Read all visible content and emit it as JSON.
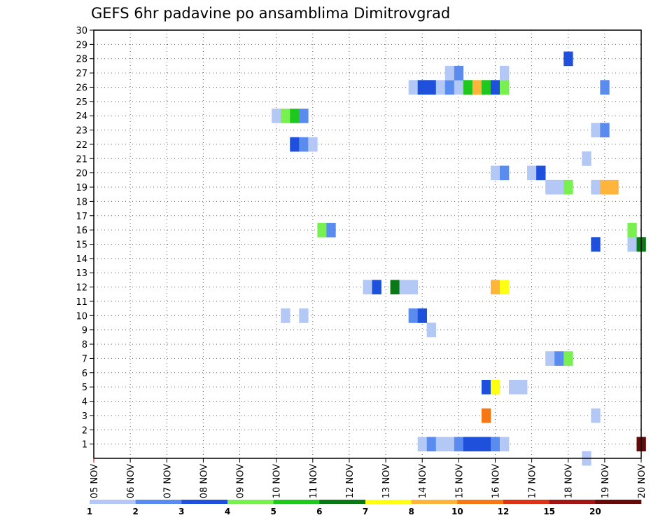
{
  "chart_data": {
    "type": "heatmap",
    "title": "GEFS 6hr padavine po ansamblima Dimitrovgrad",
    "x_tick_labels": [
      "05 NOV",
      "06 NOV",
      "07 NOV",
      "08 NOV",
      "09 NOV",
      "10 NOV",
      "11 NOV",
      "12 NOV",
      "13 NOV",
      "14 NOV",
      "15 NOV",
      "16 NOV",
      "17 NOV",
      "18 NOV",
      "19 NOV",
      "20 NOV"
    ],
    "x_unit": "6-hour step from 05 NOV 00Z",
    "xlim": [
      0,
      60
    ],
    "y_tick_labels": [
      "1",
      "2",
      "3",
      "4",
      "5",
      "6",
      "7",
      "8",
      "9",
      "10",
      "11",
      "12",
      "13",
      "14",
      "15",
      "16",
      "17",
      "18",
      "19",
      "20",
      "21",
      "22",
      "23",
      "24",
      "25",
      "26",
      "27",
      "28",
      "29",
      "30"
    ],
    "ylim": [
      0,
      30
    ],
    "grid": true,
    "color_scale": {
      "levels": [
        "1",
        "2",
        "3",
        "4",
        "5",
        "6",
        "7",
        "8",
        "10",
        "12",
        "15",
        "20"
      ],
      "colors": [
        "#b4c8f5",
        "#5a8cf0",
        "#1e50dc",
        "#78f050",
        "#1ec81e",
        "#0a7814",
        "#ffff14",
        "#ffb43c",
        "#f57814",
        "#dc3214",
        "#a01414",
        "#640a0a"
      ]
    },
    "cells": [
      {
        "x": 36,
        "y": 1,
        "c": 1
      },
      {
        "x": 37,
        "y": 1,
        "c": 2
      },
      {
        "x": 38,
        "y": 1,
        "c": 1
      },
      {
        "x": 39,
        "y": 1,
        "c": 1
      },
      {
        "x": 40,
        "y": 1,
        "c": 2
      },
      {
        "x": 41,
        "y": 1,
        "c": 3
      },
      {
        "x": 42,
        "y": 1,
        "c": 3
      },
      {
        "x": 43,
        "y": 1,
        "c": 3
      },
      {
        "x": 44,
        "y": 1,
        "c": 2
      },
      {
        "x": 45,
        "y": 1,
        "c": 1
      },
      {
        "x": 60,
        "y": 1,
        "c": 12
      },
      {
        "x": 54,
        "y": 0,
        "c": 1
      },
      {
        "x": 43,
        "y": 3,
        "c": 9
      },
      {
        "x": 55,
        "y": 3,
        "c": 1
      },
      {
        "x": 43,
        "y": 5,
        "c": 3
      },
      {
        "x": 44,
        "y": 5,
        "c": 7
      },
      {
        "x": 46,
        "y": 5,
        "c": 1
      },
      {
        "x": 47,
        "y": 5,
        "c": 1
      },
      {
        "x": 50,
        "y": 7,
        "c": 1
      },
      {
        "x": 51,
        "y": 7,
        "c": 2
      },
      {
        "x": 52,
        "y": 7,
        "c": 4
      },
      {
        "x": 37,
        "y": 9,
        "c": 1
      },
      {
        "x": 21,
        "y": 10,
        "c": 1
      },
      {
        "x": 23,
        "y": 10,
        "c": 1
      },
      {
        "x": 35,
        "y": 10,
        "c": 2
      },
      {
        "x": 36,
        "y": 10,
        "c": 3
      },
      {
        "x": 30,
        "y": 12,
        "c": 1
      },
      {
        "x": 31,
        "y": 12,
        "c": 3
      },
      {
        "x": 33,
        "y": 12,
        "c": 6
      },
      {
        "x": 34,
        "y": 12,
        "c": 1
      },
      {
        "x": 35,
        "y": 12,
        "c": 1
      },
      {
        "x": 44,
        "y": 12,
        "c": 8
      },
      {
        "x": 45,
        "y": 12,
        "c": 7
      },
      {
        "x": 55,
        "y": 15,
        "c": 3
      },
      {
        "x": 59,
        "y": 15,
        "c": 1
      },
      {
        "x": 60,
        "y": 15,
        "c": 6
      },
      {
        "x": 25,
        "y": 16,
        "c": 4
      },
      {
        "x": 26,
        "y": 16,
        "c": 2
      },
      {
        "x": 59,
        "y": 16,
        "c": 4
      },
      {
        "x": 50,
        "y": 19,
        "c": 1
      },
      {
        "x": 51,
        "y": 19,
        "c": 1
      },
      {
        "x": 52,
        "y": 19,
        "c": 4
      },
      {
        "x": 55,
        "y": 19,
        "c": 1
      },
      {
        "x": 56,
        "y": 19,
        "c": 8
      },
      {
        "x": 57,
        "y": 19,
        "c": 8
      },
      {
        "x": 44,
        "y": 20,
        "c": 1
      },
      {
        "x": 45,
        "y": 20,
        "c": 2
      },
      {
        "x": 48,
        "y": 20,
        "c": 1
      },
      {
        "x": 49,
        "y": 20,
        "c": 3
      },
      {
        "x": 54,
        "y": 21,
        "c": 1
      },
      {
        "x": 22,
        "y": 22,
        "c": 3
      },
      {
        "x": 23,
        "y": 22,
        "c": 2
      },
      {
        "x": 24,
        "y": 22,
        "c": 1
      },
      {
        "x": 55,
        "y": 23,
        "c": 1
      },
      {
        "x": 56,
        "y": 23,
        "c": 2
      },
      {
        "x": 20,
        "y": 24,
        "c": 1
      },
      {
        "x": 21,
        "y": 24,
        "c": 4
      },
      {
        "x": 22,
        "y": 24,
        "c": 5
      },
      {
        "x": 23,
        "y": 24,
        "c": 2
      },
      {
        "x": 35,
        "y": 26,
        "c": 1
      },
      {
        "x": 36,
        "y": 26,
        "c": 3
      },
      {
        "x": 37,
        "y": 26,
        "c": 3
      },
      {
        "x": 38,
        "y": 26,
        "c": 1
      },
      {
        "x": 39,
        "y": 26,
        "c": 2
      },
      {
        "x": 40,
        "y": 26,
        "c": 1
      },
      {
        "x": 41,
        "y": 26,
        "c": 5
      },
      {
        "x": 42,
        "y": 26,
        "c": 8
      },
      {
        "x": 43,
        "y": 26,
        "c": 5
      },
      {
        "x": 44,
        "y": 26,
        "c": 3
      },
      {
        "x": 45,
        "y": 26,
        "c": 4
      },
      {
        "x": 56,
        "y": 26,
        "c": 2
      },
      {
        "x": 39,
        "y": 27,
        "c": 1
      },
      {
        "x": 40,
        "y": 27,
        "c": 2
      },
      {
        "x": 45,
        "y": 27,
        "c": 1
      },
      {
        "x": 52,
        "y": 28,
        "c": 3
      }
    ]
  }
}
